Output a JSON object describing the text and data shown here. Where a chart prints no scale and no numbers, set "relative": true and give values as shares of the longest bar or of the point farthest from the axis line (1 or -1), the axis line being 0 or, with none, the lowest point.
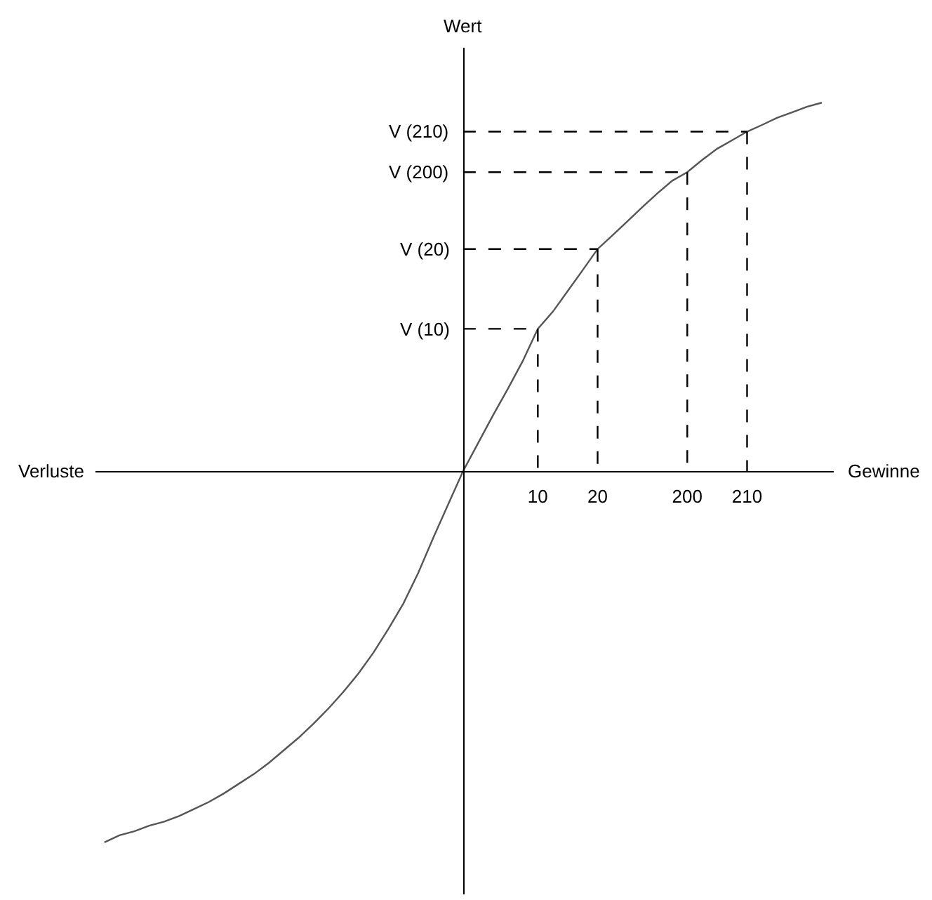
{
  "chart_data": {
    "type": "line",
    "relative": true,
    "xlabel": "Gewinne",
    "ylabel": "Wert",
    "annotations": [
      "Verluste",
      "V (10)",
      "V (20)",
      "V (200)",
      "V (210)"
    ],
    "categories": [
      null,
      null,
      null,
      null,
      null,
      null,
      null,
      null,
      null,
      null,
      null,
      null,
      null,
      null,
      null,
      null,
      null,
      null,
      null,
      null,
      null,
      null,
      null,
      null,
      null,
      null,
      null,
      null,
      null,
      "10",
      null,
      null,
      null,
      "20",
      null,
      null,
      null,
      null,
      null,
      "200",
      null,
      null,
      null,
      "210",
      null,
      null,
      null,
      null,
      null
    ],
    "grid": false,
    "marker": "none",
    "series": [
      {
        "color": "#555555",
        "line_style": "solid",
        "values": [
          -1.0,
          -0.981,
          -0.97,
          -0.955,
          -0.944,
          -0.929,
          -0.91,
          -0.891,
          -0.868,
          -0.842,
          -0.816,
          -0.786,
          -0.752,
          -0.718,
          -0.68,
          -0.639,
          -0.594,
          -0.545,
          -0.489,
          -0.425,
          -0.357,
          -0.274,
          -0.18,
          -0.09,
          0,
          0.075,
          0.15,
          0.222,
          0.297,
          0.383,
          0.429,
          0.485,
          0.541,
          0.598,
          0.635,
          0.673,
          0.711,
          0.748,
          0.782,
          0.805,
          0.838,
          0.868,
          0.891,
          0.914,
          0.932,
          0.951,
          0.966,
          0.981,
          0.992
        ]
      },
      {
        "color": "#000000",
        "line_style": "dashed",
        "values": [
          null,
          null,
          null,
          null,
          null,
          null,
          null,
          null,
          null,
          null,
          null,
          null,
          null,
          null,
          null,
          null,
          null,
          null,
          null,
          null,
          null,
          null,
          null,
          null,
          0.383,
          0.383,
          0.383,
          0.383,
          0.383,
          0.383,
          null,
          null,
          null,
          null,
          null,
          null,
          null,
          null,
          null,
          null,
          null,
          null,
          null,
          null,
          null,
          null,
          null,
          null,
          null
        ]
      },
      {
        "color": "#000000",
        "line_style": "dashed",
        "values": [
          null,
          null,
          null,
          null,
          null,
          null,
          null,
          null,
          null,
          null,
          null,
          null,
          null,
          null,
          null,
          null,
          null,
          null,
          null,
          null,
          null,
          null,
          null,
          null,
          0.598,
          0.598,
          0.598,
          0.598,
          0.598,
          0.598,
          0.598,
          0.598,
          0.598,
          0.598,
          null,
          null,
          null,
          null,
          null,
          null,
          null,
          null,
          null,
          null,
          null,
          null,
          null,
          null,
          null
        ]
      },
      {
        "color": "#000000",
        "line_style": "dashed",
        "values": [
          null,
          null,
          null,
          null,
          null,
          null,
          null,
          null,
          null,
          null,
          null,
          null,
          null,
          null,
          null,
          null,
          null,
          null,
          null,
          null,
          null,
          null,
          null,
          null,
          0.805,
          0.805,
          0.805,
          0.805,
          0.805,
          0.805,
          0.805,
          0.805,
          0.805,
          0.805,
          0.805,
          0.805,
          0.805,
          0.805,
          0.805,
          0.805,
          null,
          null,
          null,
          null,
          null,
          null,
          null,
          null,
          null
        ]
      },
      {
        "color": "#000000",
        "line_style": "dashed",
        "values": [
          null,
          null,
          null,
          null,
          null,
          null,
          null,
          null,
          null,
          null,
          null,
          null,
          null,
          null,
          null,
          null,
          null,
          null,
          null,
          null,
          null,
          null,
          null,
          null,
          0.914,
          0.914,
          0.914,
          0.914,
          0.914,
          0.914,
          0.914,
          0.914,
          0.914,
          0.914,
          0.914,
          0.914,
          0.914,
          0.914,
          0.914,
          0.914,
          0.914,
          0.914,
          0.914,
          0.914,
          null,
          null,
          null,
          null,
          null
        ]
      },
      {
        "color": "#000000",
        "line_style": "dashed",
        "x": [
          "10",
          "10"
        ],
        "values": [
          0.383,
          0
        ]
      },
      {
        "color": "#000000",
        "line_style": "dashed",
        "x": [
          "20",
          "20"
        ],
        "values": [
          0.598,
          0
        ]
      },
      {
        "color": "#000000",
        "line_style": "dashed",
        "x": [
          "200",
          "200"
        ],
        "values": [
          0.805,
          0
        ]
      },
      {
        "color": "#000000",
        "line_style": "dashed",
        "x": [
          "210",
          "210"
        ],
        "values": [
          0.914,
          0
        ]
      }
    ]
  }
}
